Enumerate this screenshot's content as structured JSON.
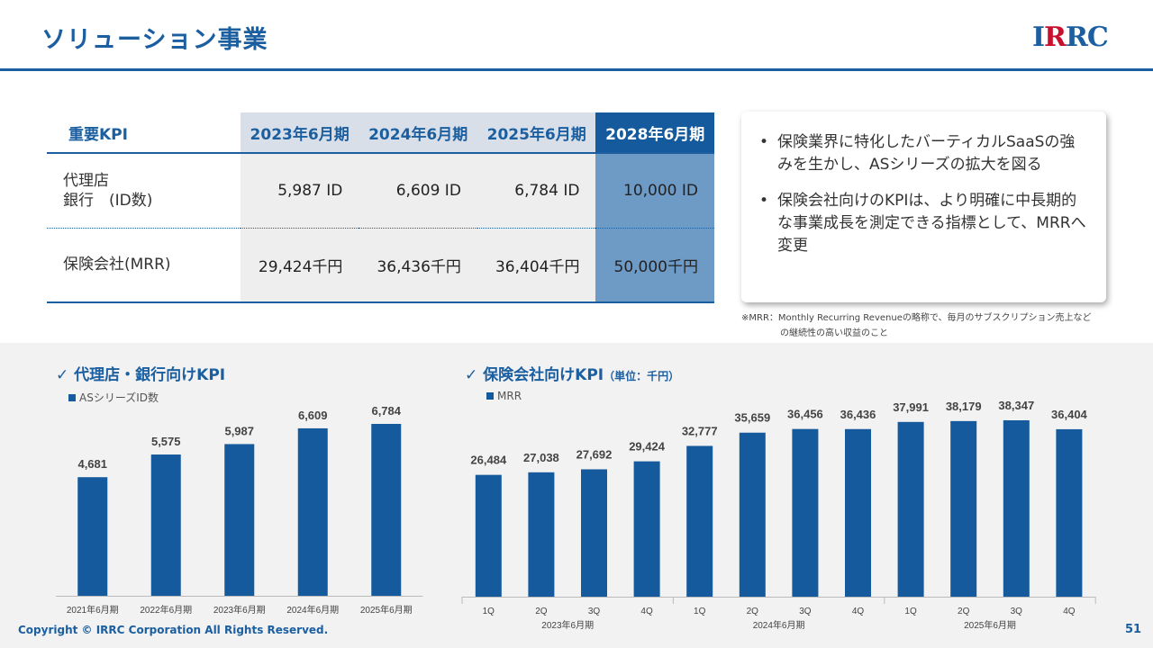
{
  "header": {
    "title": "ソリューション事業",
    "logo": "IRRC"
  },
  "kpi_table": {
    "header_label": "重要KPI",
    "columns": [
      "2023年6月期",
      "2024年6月期",
      "2025年6月期",
      "2028年6月期"
    ],
    "rows": [
      {
        "label_line1": "代理店",
        "label_line2": "銀行　(ID数)",
        "values": [
          "5,987 ID",
          "6,609 ID",
          "6,784 ID",
          "10,000 ID"
        ]
      },
      {
        "label_line1": "保険会社(MRR)",
        "label_line2": "",
        "values": [
          "29,424千円",
          "36,436千円",
          "36,404千円",
          "50,000千円"
        ]
      }
    ]
  },
  "notes": {
    "bullets": [
      "保険業界に特化したバーティカルSaaSの強みを生かし、ASシリーズの拡大を図る",
      "保険会社向けのKPIは、より明確に中長期的な事業成長を測定できる指標として、MRRへ変更"
    ],
    "footnote_line1": "※MRR：Monthly Recurring Revenueの略称で、毎月のサブスクリプション売上など",
    "footnote_line2": "の継続性の高い収益のこと"
  },
  "chart1": {
    "title": "✓ 代理店・銀行向けKPI",
    "legend": "ASシリーズID数"
  },
  "chart2": {
    "title": "✓ 保険会社向けKPI",
    "unit": "（単位：千円）",
    "legend": "MRR"
  },
  "chart_data": [
    {
      "type": "bar",
      "title": "代理店・銀行向けKPI",
      "categories": [
        "2021年6月期",
        "2022年6月期",
        "2023年6月期",
        "2024年6月期",
        "2025年6月期"
      ],
      "series": [
        {
          "name": "ASシリーズID数",
          "values": [
            4681,
            5575,
            5987,
            6609,
            6784
          ]
        }
      ],
      "value_labels": [
        "4,681",
        "5,575",
        "5,987",
        "6,609",
        "6,784"
      ],
      "color": "#155a9c",
      "grid": false,
      "legend_position": "top-left"
    },
    {
      "type": "bar",
      "title": "保険会社向けKPI",
      "unit": "千円",
      "categories": [
        "1Q",
        "2Q",
        "3Q",
        "4Q",
        "1Q",
        "2Q",
        "3Q",
        "4Q",
        "1Q",
        "2Q",
        "3Q",
        "4Q"
      ],
      "groups": [
        "2023年6月期",
        "2024年6月期",
        "2025年6月期"
      ],
      "series": [
        {
          "name": "MRR",
          "values": [
            26484,
            27038,
            27692,
            29424,
            32777,
            35659,
            36456,
            36436,
            37991,
            38179,
            38347,
            36404
          ]
        }
      ],
      "value_labels": [
        "26,484",
        "27,038",
        "27,692",
        "29,424",
        "32,777",
        "35,659",
        "36,456",
        "36,436",
        "37,991",
        "38,179",
        "38,347",
        "36,404"
      ],
      "color": "#155a9c",
      "grid": false,
      "legend_position": "top-left"
    }
  ],
  "footer": {
    "copyright": "Copyright © IRRC Corporation All Rights Reserved.",
    "page": "51"
  }
}
